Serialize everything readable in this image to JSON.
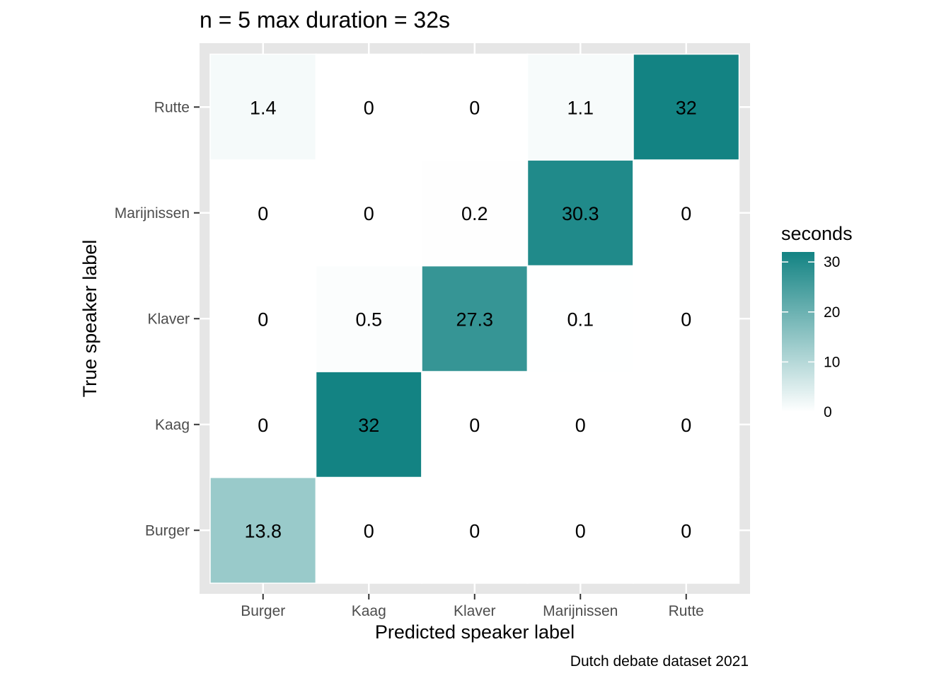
{
  "chart_data": {
    "type": "heatmap",
    "title": "n = 5 max duration = 32s",
    "xlabel": "Predicted speaker label",
    "ylabel": "True speaker label",
    "caption": "Dutch debate dataset 2021",
    "x_categories": [
      "Burger",
      "Kaag",
      "Klaver",
      "Marijnissen",
      "Rutte"
    ],
    "y_categories": [
      "Burger",
      "Kaag",
      "Klaver",
      "Marijnissen",
      "Rutte"
    ],
    "values": [
      [
        13.8,
        0,
        0,
        0,
        0
      ],
      [
        0,
        32,
        0,
        0,
        0
      ],
      [
        0,
        0.5,
        27.3,
        0.1,
        0
      ],
      [
        0,
        0,
        0.2,
        30.3,
        0
      ],
      [
        1.4,
        0,
        0,
        1.1,
        32
      ]
    ],
    "legend": {
      "title": "seconds",
      "ticks": [
        0,
        10,
        20,
        30
      ],
      "range": [
        0,
        32
      ],
      "low_color": "#ffffff",
      "high_color": "#138383",
      "placement": "right"
    },
    "panel_background": "#e6e6e6",
    "grid": true
  }
}
